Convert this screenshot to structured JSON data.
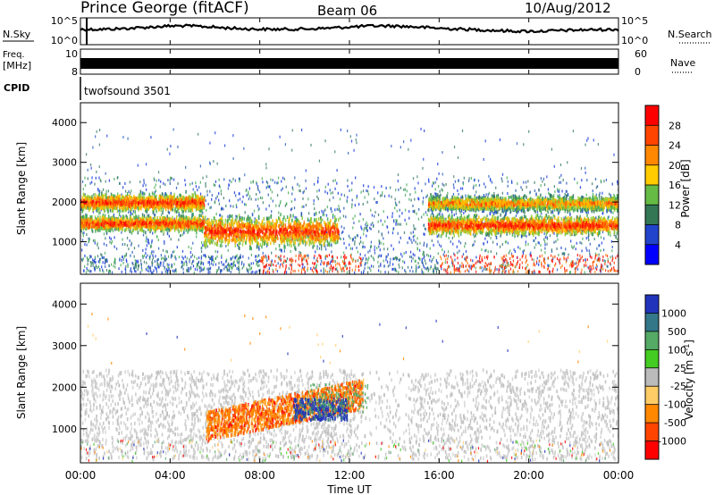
{
  "header": {
    "station": "Prince George (fitACF)",
    "beam": "Beam 06",
    "date": "10/Aug/2012"
  },
  "strips": {
    "nsky_label": "N.Sky",
    "nsky_top_tick": "10^5",
    "nsky_bottom_tick": "10^0",
    "nsearch_label": "N.Search",
    "nsearch_top_tick": "10^5",
    "nsearch_bottom_tick": "10^0",
    "freq_label_1": "Freq.",
    "freq_label_2": "[MHz]",
    "freq_top_tick": "10",
    "freq_bottom_tick": "8",
    "nave_label": "Nave",
    "nave_top_tick": "60",
    "nave_bottom_tick": "0",
    "cpid_label": "CPID",
    "cpid_value": "twofsound 3501"
  },
  "chart_data": [
    {
      "type": "heatmap",
      "name": "power",
      "ylabel": "Slant Range [km]",
      "ylim": [
        180,
        4500
      ],
      "yticks": [
        "1000",
        "2000",
        "3000",
        "4000"
      ],
      "xlim": [
        "00:00",
        "24:00"
      ],
      "colorbar_label": "Power [dB]",
      "colorbar_ticks": [
        "28",
        "24",
        "20",
        "16",
        "12",
        "8",
        "4"
      ],
      "colorbar_colors": [
        "#ff0000",
        "#ff4400",
        "#ff8800",
        "#ffcc00",
        "#66bb44",
        "#337755",
        "#2244cc",
        "#0000ff"
      ],
      "echo_bands": [
        {
          "t_start": 0.0,
          "t_end": 5.5,
          "range_km": [
            1300,
            1700
          ],
          "intensity": "strong"
        },
        {
          "t_start": 0.0,
          "t_end": 5.5,
          "range_km": [
            1800,
            2250
          ],
          "intensity": "strong"
        },
        {
          "t_start": 5.5,
          "t_end": 11.5,
          "range_km": [
            900,
            1700
          ],
          "intensity": "strong"
        },
        {
          "t_start": 15.5,
          "t_end": 24.0,
          "range_km": [
            1200,
            1700
          ],
          "intensity": "strong"
        },
        {
          "t_start": 15.5,
          "t_end": 24.0,
          "range_km": [
            1800,
            2200
          ],
          "intensity": "moderate"
        }
      ]
    },
    {
      "type": "heatmap",
      "name": "velocity",
      "ylabel": "Slant Range [km]",
      "ylim": [
        180,
        4500
      ],
      "yticks": [
        "1000",
        "2000",
        "3000",
        "4000"
      ],
      "xlabel": "Time UT",
      "xticks": [
        "00:00",
        "04:00",
        "08:00",
        "12:00",
        "16:00",
        "20:00",
        "00:00"
      ],
      "colorbar_label": "Velocity [m s^-1]",
      "colorbar_ticks": [
        "1000",
        "500",
        "100",
        "25",
        "-25",
        "-100",
        "-500",
        "-1000"
      ],
      "colorbar_colors": [
        "#2233bb",
        "#337788",
        "#55aa66",
        "#44cc22",
        "#bbbbbb",
        "#ffcc66",
        "#ff8800",
        "#ff4400",
        "#ff0000"
      ],
      "echo_bands": [
        {
          "t_start": 0.0,
          "t_end": 24.0,
          "range_km": [
            800,
            2400
          ],
          "velocity": "ground scatter"
        },
        {
          "t_start": 5.5,
          "t_end": 12.5,
          "range_km": [
            1000,
            2000
          ],
          "velocity": "-100 to -500"
        },
        {
          "t_start": 9.5,
          "t_end": 11.5,
          "range_km": [
            1300,
            1700
          ],
          "velocity": "500 to 1000"
        }
      ]
    }
  ],
  "xaxis": {
    "ticks": [
      "00:00",
      "04:00",
      "08:00",
      "12:00",
      "16:00",
      "20:00",
      "00:00"
    ],
    "label": "Time UT"
  }
}
